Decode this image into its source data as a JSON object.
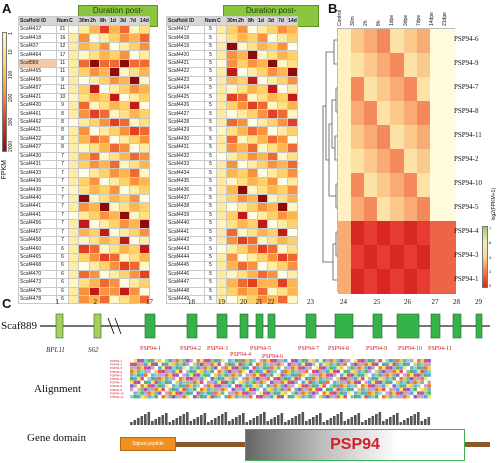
{
  "panels": {
    "a": "A",
    "b": "B",
    "c": "C"
  },
  "panel_a": {
    "header_left": "Duration post-exacerbation",
    "header_right": "Duration post-exacerbation",
    "col_headers": [
      "Scaffold ID",
      "Num",
      "C",
      "30m",
      "2h",
      "8h",
      "1d",
      "3d",
      "7d",
      "14d"
    ],
    "fpkm_label": "FPKM",
    "scale_ticks": [
      "1",
      "10",
      "100",
      "200",
      "300",
      "2000"
    ],
    "left_rows": [
      [
        "Scaf4417",
        "21"
      ],
      [
        "Scaf4418",
        "16"
      ],
      [
        "Scaf437",
        "12"
      ],
      [
        "Scaf4464",
        "17"
      ],
      [
        "Scaf889",
        "11"
      ],
      [
        "Scaf4455",
        "11"
      ],
      [
        "Scaf4456",
        "9"
      ],
      [
        "Scaf4457",
        "11"
      ],
      [
        "Scaf4421",
        "10"
      ],
      [
        "Scaf4420",
        "9"
      ],
      [
        "Scaf4461",
        "8"
      ],
      [
        "Scaf4462",
        "8"
      ],
      [
        "Scaf4421",
        "8"
      ],
      [
        "Scaf4422",
        "8"
      ],
      [
        "Scaf4427",
        "8"
      ],
      [
        "Scaf4430",
        "7"
      ],
      [
        "Scaf4431",
        "7"
      ],
      [
        "Scaf4433",
        "7"
      ],
      [
        "Scaf4436",
        "7"
      ],
      [
        "Scaf4439",
        "7"
      ],
      [
        "Scaf4440",
        "7"
      ],
      [
        "Scaf4441",
        "7"
      ],
      [
        "Scaf4441",
        "7"
      ],
      [
        "Scaf4456",
        "7"
      ],
      [
        "Scaf4457",
        "7"
      ],
      [
        "Scaf4458",
        "7"
      ],
      [
        "Scaf4460",
        "6"
      ],
      [
        "Scaf4465",
        "6"
      ],
      [
        "Scaf4468",
        "6"
      ],
      [
        "Scaf4470",
        "6"
      ],
      [
        "Scaf4473",
        "6"
      ],
      [
        "Scaf4475",
        "6"
      ],
      [
        "Scaf4478",
        "6"
      ]
    ],
    "right_rows": [
      [
        "Scaf4417",
        "5"
      ],
      [
        "Scaf4418",
        "5"
      ],
      [
        "Scaf4419",
        "5"
      ],
      [
        "Scaf4420",
        "5"
      ],
      [
        "Scaf4421",
        "5"
      ],
      [
        "Scaf4422",
        "5"
      ],
      [
        "Scaf4423",
        "5"
      ],
      [
        "Scaf4424",
        "5"
      ],
      [
        "Scaf4425",
        "5"
      ],
      [
        "Scaf4426",
        "5"
      ],
      [
        "Scaf4427",
        "5"
      ],
      [
        "Scaf4428",
        "5"
      ],
      [
        "Scaf4429",
        "5"
      ],
      [
        "Scaf4430",
        "5"
      ],
      [
        "Scaf4431",
        "5"
      ],
      [
        "Scaf4432",
        "5"
      ],
      [
        "Scaf4433",
        "5"
      ],
      [
        "Scaf4434",
        "5"
      ],
      [
        "Scaf4435",
        "5"
      ],
      [
        "Scaf4436",
        "5"
      ],
      [
        "Scaf4437",
        "5"
      ],
      [
        "Scaf4438",
        "5"
      ],
      [
        "Scaf4439",
        "5"
      ],
      [
        "Scaf4440",
        "5"
      ],
      [
        "Scaf4441",
        "5"
      ],
      [
        "Scaf4442",
        "5"
      ],
      [
        "Scaf4443",
        "5"
      ],
      [
        "Scaf4444",
        "5"
      ],
      [
        "Scaf4445",
        "5"
      ],
      [
        "Scaf4446",
        "5"
      ],
      [
        "Scaf4447",
        "5"
      ],
      [
        "Scaf4448",
        "5"
      ],
      [
        "Scaf4449",
        "5"
      ]
    ]
  },
  "panel_b": {
    "col_labels": [
      "Control",
      "30m",
      "2h",
      "8h",
      "1dpe",
      "3dpe",
      "7dpe",
      "14dpe",
      "21dpe"
    ],
    "rows": [
      "PSP94-6",
      "PSP94-9",
      "PSP94-7",
      "PSP94-8",
      "PSP94-11",
      "PSP94-2",
      "PSP94-10",
      "PSP94-5",
      "PSP94-4",
      "PSP94-3",
      "PSP94-1"
    ],
    "legend_title": "log2(FPKM+1)",
    "legend_ticks": [
      "7",
      "6",
      "4",
      "2",
      "0"
    ],
    "colors": {
      "low": "#fff9d6",
      "mid": "#f6a16e",
      "high": "#e8302c"
    }
  },
  "panel_c": {
    "scaffold": "Scaf889",
    "exon_numbers": [
      "1",
      "2",
      "17",
      "18",
      "19",
      "20",
      "21",
      "22",
      "23",
      "24",
      "25",
      "26",
      "27",
      "28",
      "29"
    ],
    "left_genes": [
      "BPL11",
      "S62"
    ],
    "psp_genes": [
      "PSP94-1",
      "PSP94-2",
      "PSP94-3",
      "PSP94-4",
      "PSP94-5",
      "PSP94-6",
      "PSP94-7",
      "PSP94-8",
      "PSP94-9",
      "PSP94-10",
      "PSP94-11"
    ],
    "alignment_label": "Alignment",
    "gene_domain_label": "Gene domain",
    "signal_peptide": "Signal peptide",
    "domain_name": "PSP94",
    "colors": {
      "exon": "#35b24a",
      "exon_light": "#a8cf5c",
      "domain_text": "#d0202a",
      "signal": "#f0901e",
      "domain_bar": "#8b5a2b"
    }
  }
}
